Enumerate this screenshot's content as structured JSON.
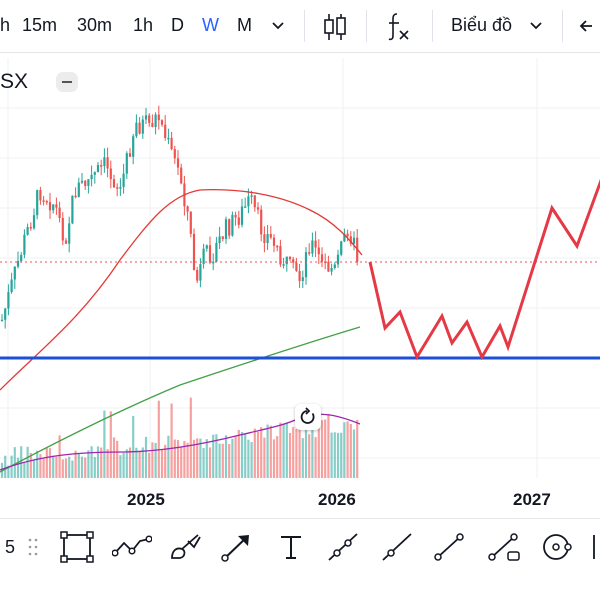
{
  "toolbar": {
    "timeframes": [
      "h",
      "15m",
      "30m",
      "1h",
      "D",
      "W",
      "M"
    ],
    "active_timeframe": "W",
    "chart_type_icon": "candles-icon",
    "indicators_icon": "fx-icon",
    "layout_label": "Biểu đồ"
  },
  "chart": {
    "symbol": "SX",
    "x_labels": [
      "2025",
      "2026",
      "2027"
    ],
    "colors": {
      "up": "#26a69a",
      "down": "#ef5350",
      "ma_red": "#e53935",
      "ma_green": "#43a047",
      "volume_ma": "#9c27b0",
      "support_line": "#1e4fd8",
      "projection": "#e53945",
      "price_line": "#ef5350"
    }
  },
  "bottom_toolbar": {
    "left_number": "5",
    "tools": [
      "rectangle-icon",
      "path-icon",
      "brush-icon",
      "arrow-icon",
      "text-tool-icon",
      "ray-line-icon",
      "extended-line-icon",
      "trend-line-icon",
      "info-line-icon",
      "circle-icon"
    ]
  }
}
